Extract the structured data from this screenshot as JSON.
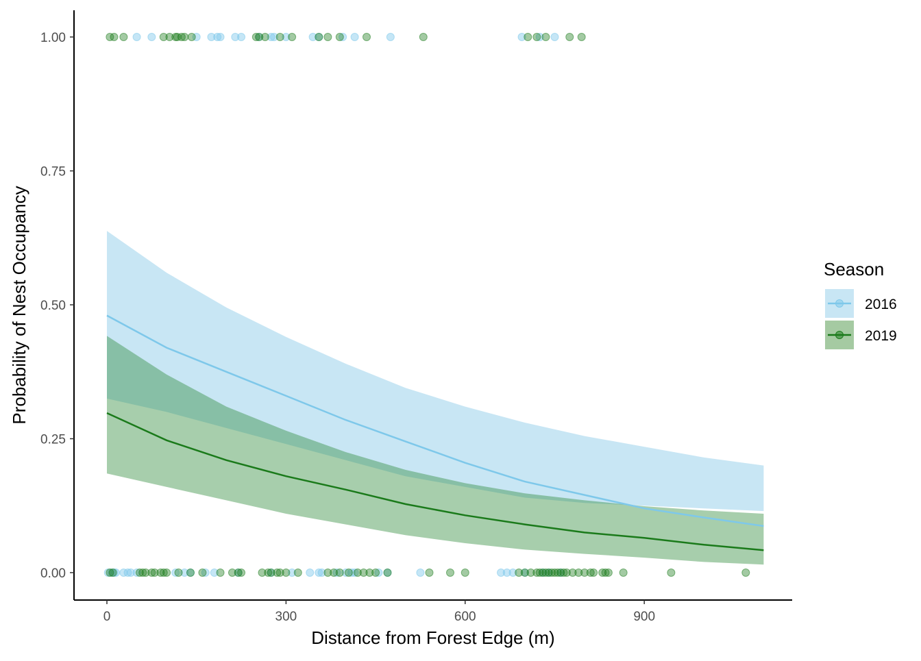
{
  "chart_data": {
    "type": "scatter",
    "title": "",
    "xlabel": "Distance from Forest Edge (m)",
    "ylabel": "Probability of Nest Occupancy",
    "xlim": [
      -50,
      1150
    ],
    "ylim": [
      -0.05,
      1.05
    ],
    "x_ticks": [
      0,
      300,
      600,
      900
    ],
    "x_tick_labels": [
      "0",
      "300",
      "600",
      "900"
    ],
    "y_ticks": [
      0,
      0.25,
      0.5,
      0.75,
      1.0
    ],
    "y_tick_labels": [
      "0.00",
      "0.25",
      "0.50",
      "0.75",
      "1.00"
    ],
    "grid": false,
    "legend": {
      "title": "Season",
      "position": "right"
    },
    "series": [
      {
        "name": "2016",
        "color": "#7ec8ea",
        "band_color": "#c8e6f4",
        "point_alpha": 0.45,
        "fit_x": [
          0,
          100,
          200,
          300,
          400,
          500,
          600,
          700,
          800,
          900,
          1000,
          1100
        ],
        "fit_y": [
          0.48,
          0.42,
          0.375,
          0.33,
          0.285,
          0.245,
          0.205,
          0.17,
          0.145,
          0.12,
          0.103,
          0.087
        ],
        "ci_lower": [
          0.325,
          0.3,
          0.27,
          0.24,
          0.21,
          0.18,
          0.16,
          0.14,
          0.13,
          0.125,
          0.12,
          0.115
        ],
        "ci_upper": [
          0.638,
          0.56,
          0.495,
          0.44,
          0.39,
          0.345,
          0.31,
          0.28,
          0.255,
          0.235,
          0.215,
          0.2
        ],
        "points_occupied_x": [
          50,
          75,
          150,
          175,
          185,
          190,
          215,
          225,
          255,
          275,
          280,
          300,
          345,
          355,
          395,
          415,
          475,
          695,
          725,
          750
        ],
        "points_unoccupied_x": [
          2,
          8,
          12,
          15,
          28,
          35,
          40,
          50,
          115,
          130,
          140,
          165,
          180,
          220,
          275,
          310,
          340,
          355,
          360,
          385,
          400,
          410,
          415,
          455,
          470,
          525,
          660,
          670,
          680,
          700,
          730,
          740,
          760
        ]
      },
      {
        "name": "2019",
        "color": "#1a7a1a",
        "band_color": "#a5caa2",
        "overlap_color": "#86bc9c",
        "point_alpha": 0.4,
        "fit_x": [
          0,
          100,
          200,
          300,
          400,
          500,
          600,
          700,
          800,
          900,
          1000,
          1100
        ],
        "fit_y": [
          0.298,
          0.247,
          0.21,
          0.18,
          0.155,
          0.128,
          0.107,
          0.09,
          0.075,
          0.065,
          0.052,
          0.042
        ],
        "ci_lower": [
          0.185,
          0.16,
          0.135,
          0.11,
          0.09,
          0.07,
          0.055,
          0.043,
          0.035,
          0.028,
          0.02,
          0.015
        ],
        "ci_upper": [
          0.442,
          0.37,
          0.31,
          0.265,
          0.225,
          0.192,
          0.167,
          0.148,
          0.135,
          0.124,
          0.116,
          0.11
        ],
        "points_occupied_x": [
          5,
          12,
          28,
          95,
          105,
          115,
          118,
          125,
          130,
          142,
          250,
          255,
          265,
          290,
          310,
          355,
          370,
          390,
          435,
          530,
          705,
          720,
          735,
          775,
          795
        ],
        "points_unoccupied_x": [
          5,
          10,
          55,
          60,
          65,
          75,
          80,
          90,
          95,
          100,
          120,
          140,
          160,
          190,
          210,
          220,
          225,
          260,
          270,
          275,
          285,
          290,
          300,
          320,
          370,
          380,
          390,
          405,
          420,
          430,
          440,
          450,
          470,
          540,
          575,
          600,
          690,
          700,
          710,
          720,
          725,
          730,
          735,
          740,
          745,
          750,
          755,
          760,
          765,
          770,
          780,
          790,
          800,
          810,
          815,
          830,
          835,
          840,
          865,
          945,
          1070
        ]
      }
    ]
  }
}
